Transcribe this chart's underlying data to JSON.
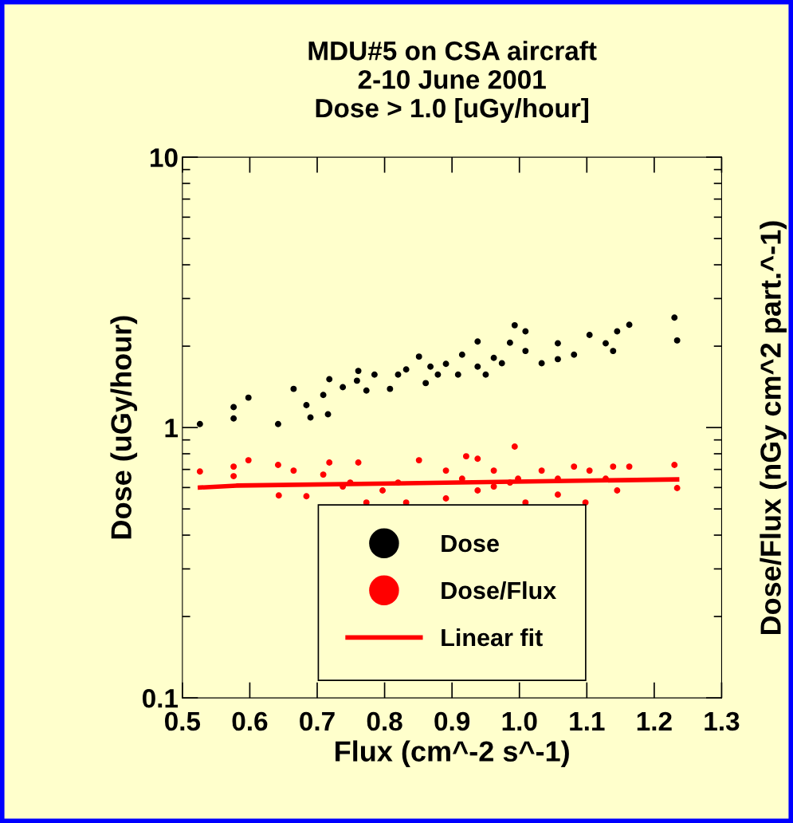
{
  "chart_data": {
    "type": "scatter",
    "title": "MDU#5 on CSA aircraft\n2-10 June 2001\nDose > 1.0 [uGy/hour]",
    "xlabel": "Flux (cm^-2 s^-1)",
    "ylabel": "Dose (uGy/hour)",
    "y2label": "Dose/Flux (nGy cm^2 part.^-1)",
    "series": [
      {
        "name": "Dose",
        "color": "#000000",
        "x": [
          0.526,
          0.576,
          0.576,
          0.598,
          0.642,
          0.665,
          0.684,
          0.69,
          0.709,
          0.716,
          0.718,
          0.738,
          0.759,
          0.761,
          0.773,
          0.785,
          0.808,
          0.82,
          0.832,
          0.851,
          0.861,
          0.868,
          0.879,
          0.891,
          0.909,
          0.915,
          0.938,
          0.938,
          0.95,
          0.962,
          0.974,
          0.986,
          0.993,
          1.009,
          1.009,
          1.033,
          1.057,
          1.057,
          1.081,
          1.104,
          1.128,
          1.139,
          1.145,
          1.163,
          1.23,
          1.234
        ],
        "values": [
          1.03,
          1.19,
          1.08,
          1.29,
          1.03,
          1.39,
          1.21,
          1.09,
          1.32,
          1.12,
          1.51,
          1.41,
          1.49,
          1.62,
          1.37,
          1.57,
          1.39,
          1.57,
          1.64,
          1.83,
          1.46,
          1.68,
          1.57,
          1.72,
          1.57,
          1.86,
          2.08,
          1.68,
          1.57,
          1.81,
          1.73,
          2.06,
          2.39,
          1.92,
          2.27,
          1.73,
          2.05,
          1.79,
          1.86,
          2.2,
          2.05,
          1.92,
          2.27,
          2.4,
          2.55,
          2.1
        ]
      },
      {
        "name": "Dose/Flux",
        "color": "#ff0000",
        "x": [
          0.526,
          0.576,
          0.576,
          0.598,
          0.642,
          0.643,
          0.665,
          0.684,
          0.709,
          0.718,
          0.738,
          0.749,
          0.761,
          0.773,
          0.797,
          0.82,
          0.832,
          0.851,
          0.891,
          0.891,
          0.915,
          0.921,
          0.938,
          0.938,
          0.962,
          0.962,
          0.986,
          0.993,
          0.998,
          1.009,
          1.033,
          1.057,
          1.057,
          1.081,
          1.098,
          1.104,
          1.128,
          1.139,
          1.145,
          1.163,
          1.23,
          1.234
        ],
        "values": [
          0.688,
          0.717,
          0.661,
          0.757,
          0.727,
          0.561,
          0.693,
          0.557,
          0.67,
          0.742,
          0.605,
          0.626,
          0.742,
          0.528,
          0.585,
          0.626,
          0.528,
          0.757,
          0.693,
          0.547,
          0.647,
          0.783,
          0.767,
          0.585,
          0.605,
          0.693,
          0.626,
          0.85,
          0.647,
          0.528,
          0.693,
          0.647,
          0.565,
          0.717,
          0.528,
          0.693,
          0.647,
          0.717,
          0.585,
          0.717,
          0.727,
          0.597
        ]
      },
      {
        "name": "Linear fit",
        "type": "line",
        "marker": "none",
        "color": "#ff0000",
        "x": [
          0.526,
          0.58,
          1.234
        ],
        "values": [
          0.6,
          0.61,
          0.643
        ]
      }
    ],
    "xlim": [
      0.5,
      1.3
    ],
    "xticks": [
      0.5,
      0.6,
      0.7,
      0.8,
      0.9,
      {
        "value": 1,
        "label": "1.0"
      },
      1.1,
      1.2,
      1.3
    ],
    "ylim": [
      0.1,
      10
    ],
    "yticks": [
      0.1,
      1,
      10
    ],
    "log": "y",
    "marker": "circle",
    "grid": false,
    "legend": "bottom"
  }
}
